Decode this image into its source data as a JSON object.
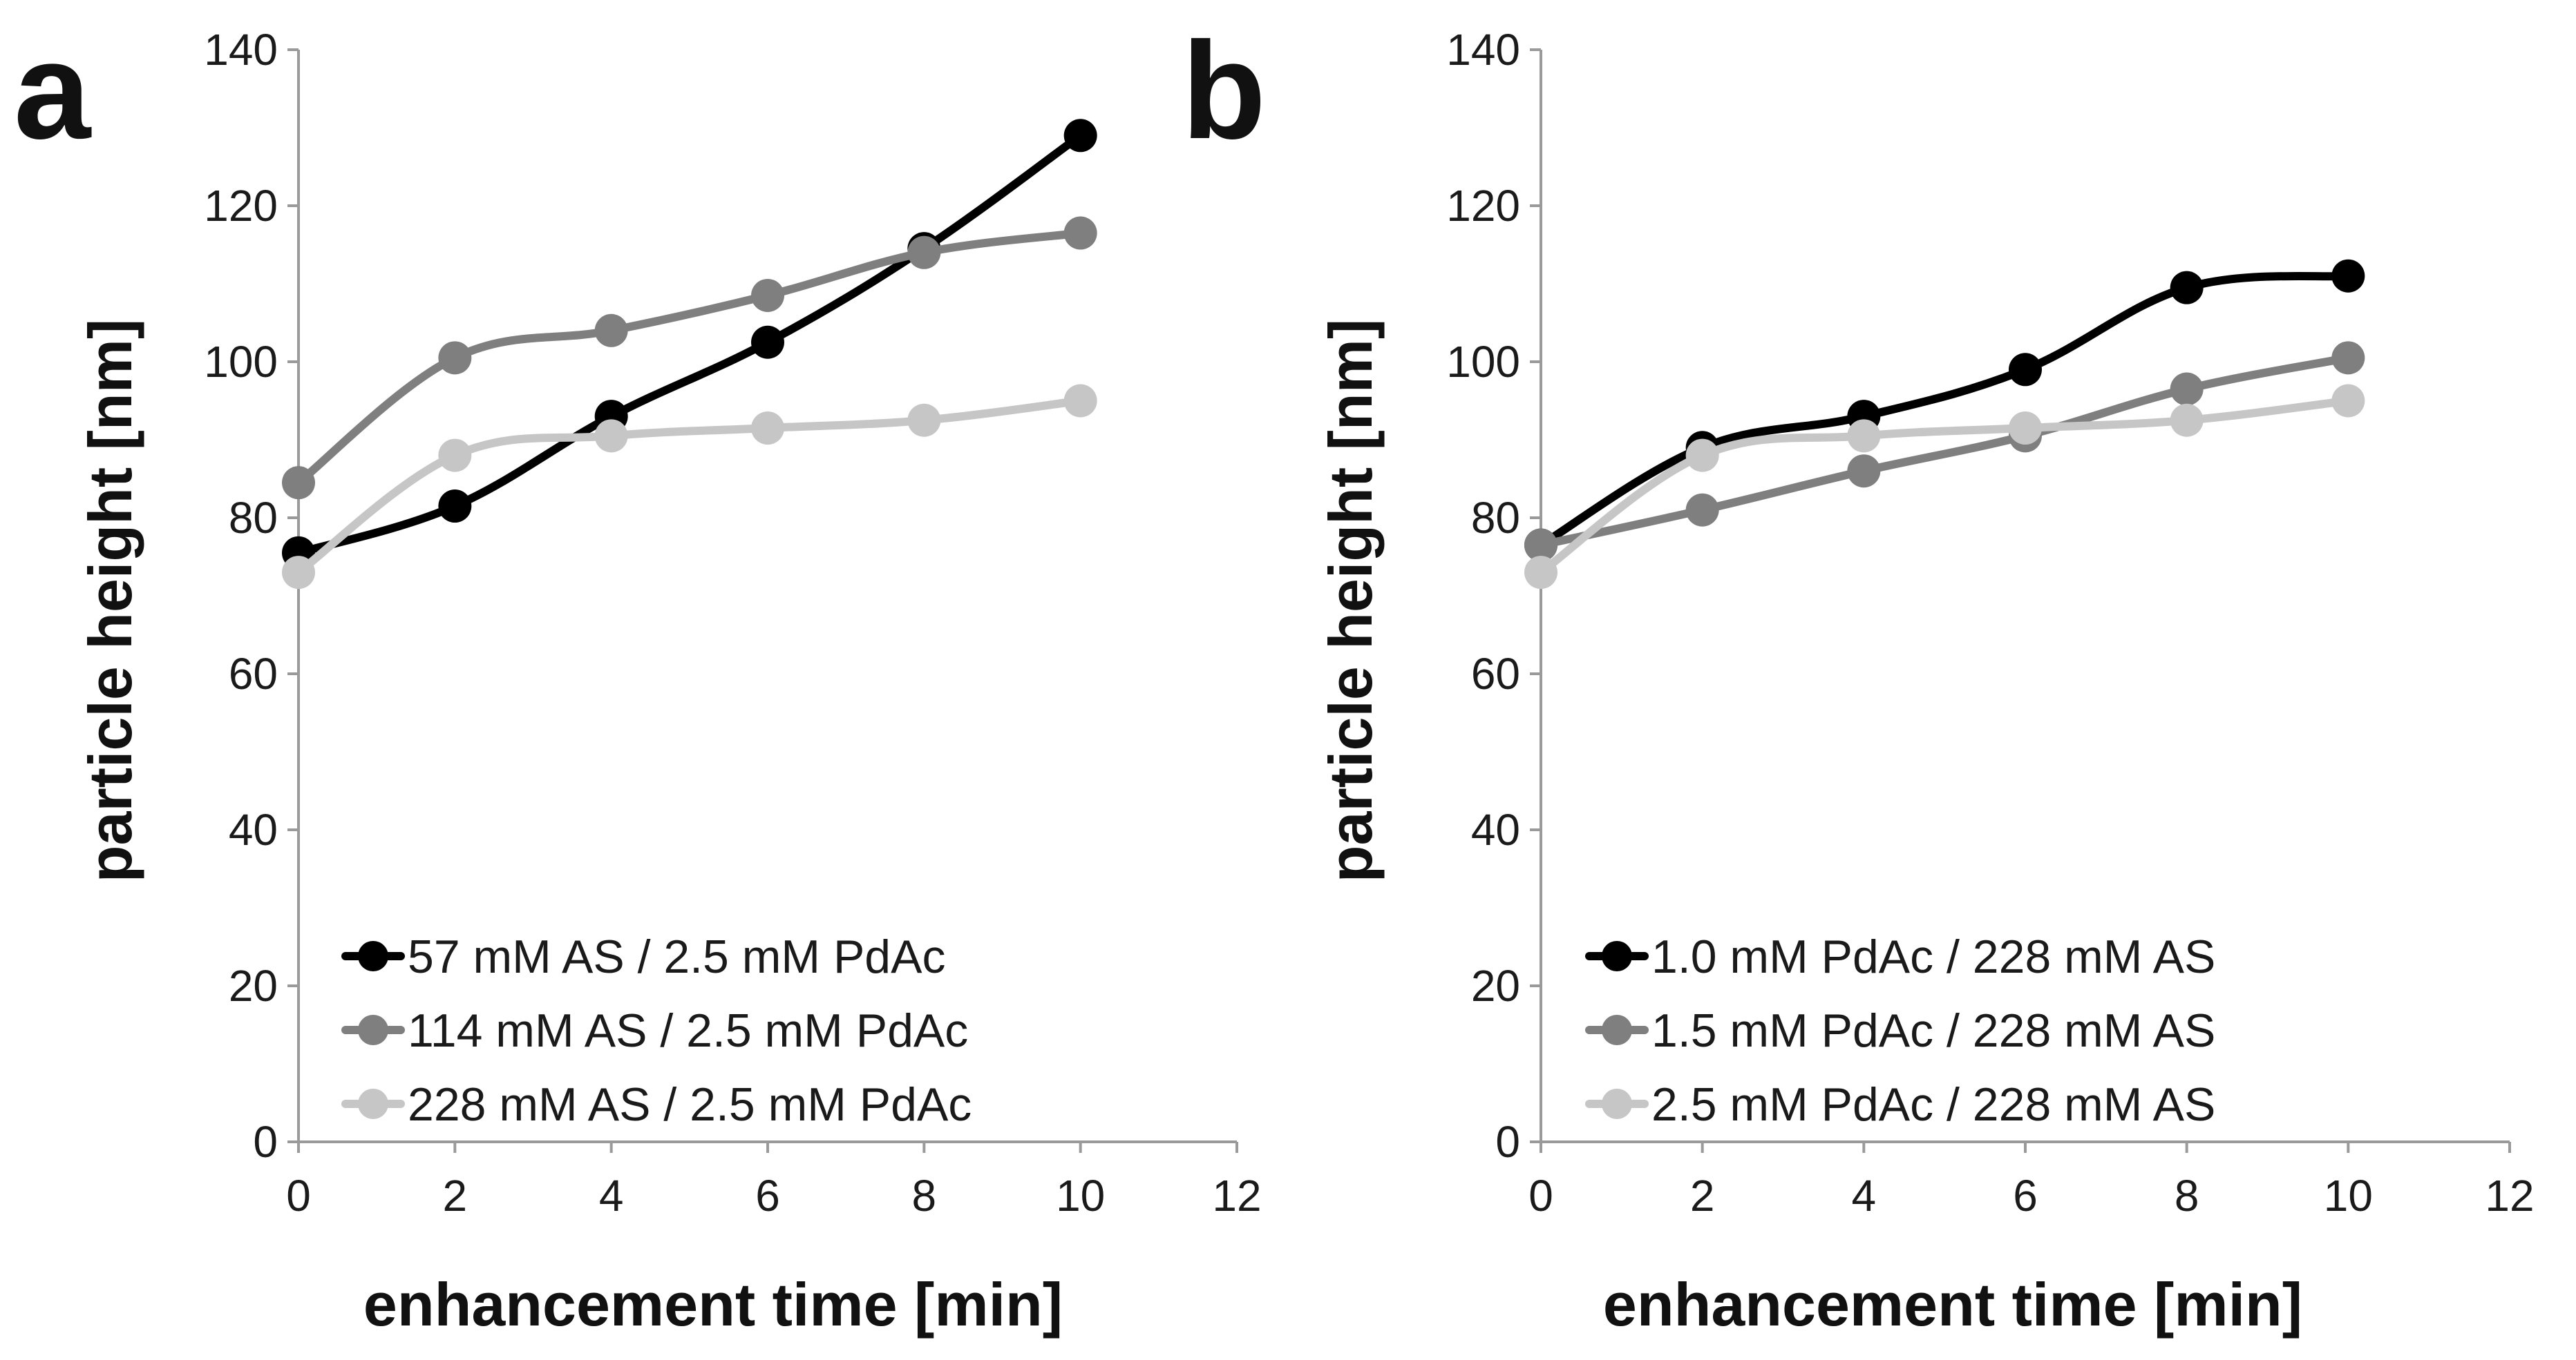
{
  "chart_data": [
    {
      "type": "line",
      "panel": "a",
      "title": "",
      "xlabel": "enhancement time [min]",
      "ylabel": "particle height [nm]",
      "xlim": [
        0,
        12
      ],
      "ylim": [
        0,
        140
      ],
      "xticks": [
        0,
        2,
        4,
        6,
        8,
        10,
        12
      ],
      "yticks": [
        0,
        20,
        40,
        60,
        80,
        100,
        120,
        140
      ],
      "grid": false,
      "legend_position": "bottom-left",
      "x": [
        0,
        2,
        4,
        6,
        8,
        10
      ],
      "series": [
        {
          "name": "57 mM AS / 2.5 mM PdAc",
          "color": "#000000",
          "values": [
            75.5,
            81.5,
            93,
            102.5,
            114.5,
            129
          ]
        },
        {
          "name": "114 mM AS / 2.5 mM PdAc",
          "color": "#7f7f7f",
          "values": [
            84.5,
            100.5,
            104,
            108.5,
            114,
            116.5
          ]
        },
        {
          "name": "228 mM AS / 2.5 mM PdAc",
          "color": "#c6c6c6",
          "values": [
            73,
            88,
            90.5,
            91.5,
            92.5,
            95
          ]
        }
      ]
    },
    {
      "type": "line",
      "panel": "b",
      "title": "",
      "xlabel": "enhancement time [min]",
      "ylabel": "particle height [nm]",
      "xlim": [
        0,
        12
      ],
      "ylim": [
        0,
        140
      ],
      "xticks": [
        0,
        2,
        4,
        6,
        8,
        10,
        12
      ],
      "yticks": [
        0,
        20,
        40,
        60,
        80,
        100,
        120,
        140
      ],
      "grid": false,
      "legend_position": "bottom-left",
      "x": [
        0,
        2,
        4,
        6,
        8,
        10
      ],
      "series": [
        {
          "name": "1.0 mM PdAc / 228 mM AS",
          "color": "#000000",
          "values": [
            76.5,
            89,
            93,
            99,
            109.5,
            111
          ]
        },
        {
          "name": "1.5 mM PdAc / 228 mM AS",
          "color": "#7f7f7f",
          "values": [
            76.5,
            81,
            86,
            90.5,
            96.5,
            100.5
          ]
        },
        {
          "name": "2.5 mM PdAc / 228 mM AS",
          "color": "#c6c6c6",
          "values": [
            73,
            88,
            90.5,
            91.5,
            92.5,
            95
          ]
        }
      ]
    }
  ]
}
